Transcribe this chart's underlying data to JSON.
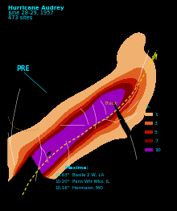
{
  "title_line1": "Hurricane Audrey",
  "title_line2": "June 28-29, 1957",
  "title_line3": "473 sites",
  "background_color": "#000000",
  "legend_values": [
    "1",
    "3",
    "5",
    "7",
    "10"
  ],
  "legend_colors": [
    "#f0b080",
    "#e06020",
    "#c01000",
    "#800000",
    "#9900bb"
  ],
  "track_color": "#dddd00",
  "state_line_color": "#ffffff",
  "pre_label_color": "#00ddff",
  "track_label_color": "#cccc00",
  "maxima_color": "#00ddff",
  "figsize": [
    2.2,
    2.62
  ],
  "dpi": 100,
  "track_x": [
    28,
    35,
    48,
    62,
    80,
    100,
    118,
    135,
    150,
    163,
    175,
    185,
    195
  ],
  "track_y_img": [
    242,
    228,
    210,
    195,
    180,
    168,
    155,
    145,
    132,
    118,
    100,
    82,
    62
  ]
}
